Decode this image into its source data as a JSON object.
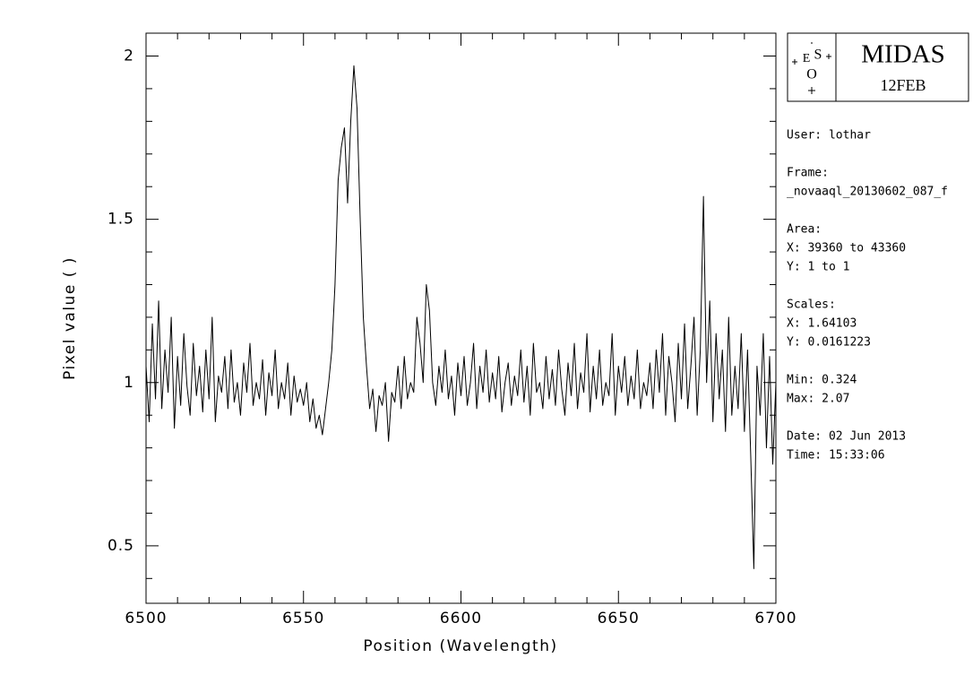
{
  "chart_data": {
    "type": "line",
    "xlabel": "Position (Wavelength)",
    "ylabel": "Pixel value ( )",
    "xlim": [
      6500,
      6700
    ],
    "ylim": [
      0.324,
      2.07
    ],
    "xticks": [
      6500,
      6550,
      6600,
      6650,
      6700
    ],
    "yticks": [
      0.5,
      1,
      1.5,
      2
    ],
    "xticks_minor": [
      6510,
      6520,
      6530,
      6540,
      6560,
      6570,
      6580,
      6590,
      6610,
      6620,
      6630,
      6640,
      6660,
      6670,
      6680,
      6690
    ],
    "yticks_minor": [
      0.4,
      0.6,
      0.7,
      0.8,
      0.9,
      1.1,
      1.2,
      1.3,
      1.4,
      1.6,
      1.7,
      1.8,
      1.9
    ],
    "color": "#000000",
    "x": [
      6500,
      6501,
      6502,
      6503,
      6504,
      6505,
      6506,
      6507,
      6508,
      6509,
      6510,
      6511,
      6512,
      6513,
      6514,
      6515,
      6516,
      6517,
      6518,
      6519,
      6520,
      6521,
      6522,
      6523,
      6524,
      6525,
      6526,
      6527,
      6528,
      6529,
      6530,
      6531,
      6532,
      6533,
      6534,
      6535,
      6536,
      6537,
      6538,
      6539,
      6540,
      6541,
      6542,
      6543,
      6544,
      6545,
      6546,
      6547,
      6548,
      6549,
      6550,
      6551,
      6552,
      6553,
      6554,
      6555,
      6556,
      6557,
      6558,
      6559,
      6560,
      6561,
      6562,
      6563,
      6564,
      6565,
      6566,
      6567,
      6568,
      6569,
      6570,
      6571,
      6572,
      6573,
      6574,
      6575,
      6576,
      6577,
      6578,
      6579,
      6580,
      6581,
      6582,
      6583,
      6584,
      6585,
      6586,
      6587,
      6588,
      6589,
      6590,
      6591,
      6592,
      6593,
      6594,
      6595,
      6596,
      6597,
      6598,
      6599,
      6600,
      6601,
      6602,
      6603,
      6604,
      6605,
      6606,
      6607,
      6608,
      6609,
      6610,
      6611,
      6612,
      6613,
      6614,
      6615,
      6616,
      6617,
      6618,
      6619,
      6620,
      6621,
      6622,
      6623,
      6624,
      6625,
      6626,
      6627,
      6628,
      6629,
      6630,
      6631,
      6632,
      6633,
      6634,
      6635,
      6636,
      6637,
      6638,
      6639,
      6640,
      6641,
      6642,
      6643,
      6644,
      6645,
      6646,
      6647,
      6648,
      6649,
      6650,
      6651,
      6652,
      6653,
      6654,
      6655,
      6656,
      6657,
      6658,
      6659,
      6660,
      6661,
      6662,
      6663,
      6664,
      6665,
      6666,
      6667,
      6668,
      6669,
      6670,
      6671,
      6672,
      6673,
      6674,
      6675,
      6676,
      6677,
      6678,
      6679,
      6680,
      6681,
      6682,
      6683,
      6684,
      6685,
      6686,
      6687,
      6688,
      6689,
      6690,
      6691,
      6692,
      6693,
      6694,
      6695,
      6696,
      6697,
      6698,
      6699,
      6700
    ],
    "values": [
      1.05,
      0.88,
      1.18,
      0.95,
      1.25,
      0.92,
      1.1,
      0.97,
      1.2,
      0.86,
      1.08,
      0.93,
      1.15,
      0.99,
      0.9,
      1.12,
      0.96,
      1.05,
      0.91,
      1.1,
      0.95,
      1.2,
      0.88,
      1.02,
      0.97,
      1.08,
      0.92,
      1.1,
      0.94,
      1.0,
      0.9,
      1.06,
      0.97,
      1.12,
      0.93,
      1.0,
      0.95,
      1.07,
      0.9,
      1.03,
      0.96,
      1.1,
      0.92,
      1.0,
      0.95,
      1.06,
      0.9,
      1.02,
      0.94,
      0.98,
      0.93,
      1.0,
      0.88,
      0.95,
      0.86,
      0.9,
      0.84,
      0.92,
      1.0,
      1.1,
      1.3,
      1.62,
      1.72,
      1.78,
      1.55,
      1.8,
      1.97,
      1.84,
      1.5,
      1.2,
      1.05,
      0.92,
      0.98,
      0.85,
      0.96,
      0.93,
      1.0,
      0.82,
      0.97,
      0.94,
      1.05,
      0.92,
      1.08,
      0.95,
      1.0,
      0.97,
      1.2,
      1.12,
      1.0,
      1.3,
      1.22,
      1.0,
      0.93,
      1.05,
      0.97,
      1.1,
      0.95,
      1.02,
      0.9,
      1.06,
      0.96,
      1.08,
      0.93,
      1.0,
      1.12,
      0.92,
      1.05,
      0.97,
      1.1,
      0.94,
      1.03,
      0.95,
      1.08,
      0.91,
      1.0,
      1.06,
      0.93,
      1.02,
      0.96,
      1.1,
      0.94,
      1.05,
      0.9,
      1.12,
      0.97,
      1.0,
      0.92,
      1.08,
      0.95,
      1.04,
      0.93,
      1.1,
      0.98,
      0.9,
      1.06,
      0.96,
      1.12,
      0.92,
      1.03,
      0.97,
      1.15,
      0.91,
      1.05,
      0.95,
      1.1,
      0.93,
      1.0,
      0.96,
      1.15,
      0.9,
      1.05,
      0.97,
      1.08,
      0.93,
      1.02,
      0.95,
      1.1,
      0.92,
      1.0,
      0.96,
      1.06,
      0.92,
      1.1,
      0.97,
      1.15,
      0.9,
      1.08,
      1.0,
      0.88,
      1.12,
      0.95,
      1.18,
      0.92,
      1.05,
      1.2,
      0.9,
      1.1,
      1.57,
      1.0,
      1.25,
      0.88,
      1.15,
      0.95,
      1.1,
      0.85,
      1.2,
      0.9,
      1.05,
      0.92,
      1.15,
      0.85,
      1.1,
      0.78,
      0.43,
      1.05,
      0.9,
      1.15,
      0.8,
      1.08,
      0.75,
      1.0
    ]
  },
  "logo": {
    "title": "MIDAS",
    "version": "12FEB",
    "letters": [
      "E",
      "S",
      "O"
    ]
  },
  "info": [
    "User:  lothar",
    "Frame:",
    "_novaaql_20130602_087_f",
    "Area:",
    "X:  39360 to 43360",
    "Y:  1 to 1",
    "Scales:",
    "X:  1.64103",
    "Y:  0.0161223",
    "Min:  0.324",
    "Max:  2.07",
    "Date:  02 Jun 2013",
    "Time:  15:33:06"
  ]
}
